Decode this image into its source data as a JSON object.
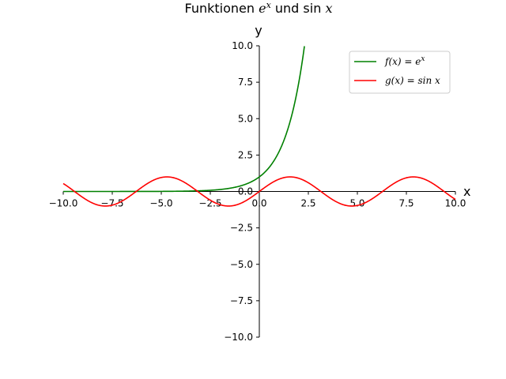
{
  "chart_data": {
    "type": "line",
    "title": "Funktionen e^x und sin x",
    "xlabel": "x",
    "ylabel": "y",
    "xlim": [
      -10,
      10
    ],
    "ylim": [
      -10,
      10
    ],
    "x_ticks": [
      -10.0,
      -7.5,
      -5.0,
      -2.5,
      0.0,
      2.5,
      5.0,
      7.5,
      10.0
    ],
    "y_ticks": [
      -10.0,
      -7.5,
      -5.0,
      -2.5,
      0.0,
      2.5,
      5.0,
      7.5,
      10.0
    ],
    "x_tick_labels": [
      "−10.0",
      "−7.5",
      "−5.0",
      "−2.5",
      "0.0",
      "2.5",
      "5.0",
      "7.5",
      "10.0"
    ],
    "y_tick_labels": [
      "−10.0",
      "−7.5",
      "−5.0",
      "−2.5",
      "0.0",
      "2.5",
      "5.0",
      "7.5",
      "10.0"
    ],
    "grid": false,
    "spines": "centered at origin",
    "legend_position": "top-right",
    "series": [
      {
        "name": "f(x) = e^x",
        "color": "#008000",
        "function": "exp",
        "x": [
          -10,
          -8,
          -6,
          -4,
          -3,
          -2,
          -1,
          0,
          0.5,
          1,
          1.5,
          2,
          2.3
        ],
        "y": [
          5e-05,
          0.0003,
          0.0025,
          0.018,
          0.05,
          0.135,
          0.368,
          1.0,
          1.649,
          2.718,
          4.482,
          7.389,
          9.974
        ]
      },
      {
        "name": "g(x) = sin x",
        "color": "#ff0000",
        "function": "sin",
        "x": [
          -10,
          -7.85,
          -4.71,
          -1.57,
          1.57,
          4.71,
          7.85,
          10
        ],
        "y": [
          0.544,
          -1.0,
          1.0,
          -1.0,
          1.0,
          -1.0,
          1.0,
          -0.544
        ]
      }
    ]
  }
}
